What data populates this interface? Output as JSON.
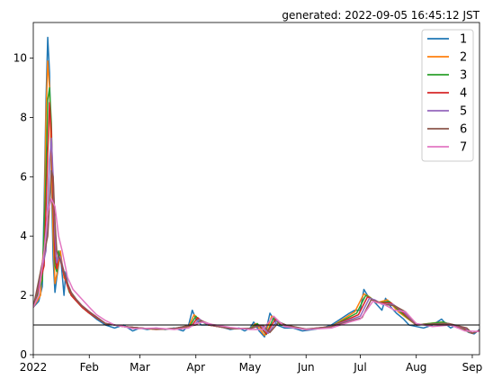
{
  "chart_data": {
    "type": "line",
    "title": "generated: 2022-09-05 16:45:12 JST",
    "xlabel": "",
    "ylabel": "",
    "xlim": [
      "2022-01-01",
      "2022-09-05"
    ],
    "ylim": [
      0,
      11.2
    ],
    "x_ticks": [
      {
        "date": "2022-01-01",
        "label": "2022"
      },
      {
        "date": "2022-02-01",
        "label": "Feb"
      },
      {
        "date": "2022-03-01",
        "label": "Mar"
      },
      {
        "date": "2022-04-01",
        "label": "Apr"
      },
      {
        "date": "2022-05-01",
        "label": "May"
      },
      {
        "date": "2022-06-01",
        "label": "Jun"
      },
      {
        "date": "2022-07-01",
        "label": "Jul"
      },
      {
        "date": "2022-08-01",
        "label": "Aug"
      },
      {
        "date": "2022-09-01",
        "label": "Sep"
      }
    ],
    "y_ticks": [
      0,
      2,
      4,
      6,
      8,
      10
    ],
    "grid": false,
    "legend_position": "top-right",
    "reference_line": {
      "y": 1,
      "color": "#000000"
    },
    "series": [
      {
        "name": "1",
        "color": "#1f77b4",
        "x": [
          "2022-01-01",
          "2022-01-04",
          "2022-01-06",
          "2022-01-07",
          "2022-01-08",
          "2022-01-09",
          "2022-01-10",
          "2022-01-11",
          "2022-01-12",
          "2022-01-13",
          "2022-01-14",
          "2022-01-16",
          "2022-01-18",
          "2022-01-19",
          "2022-01-20",
          "2022-01-22",
          "2022-01-25",
          "2022-01-28",
          "2022-02-01",
          "2022-02-05",
          "2022-02-10",
          "2022-02-15",
          "2022-02-20",
          "2022-02-25",
          "2022-03-01",
          "2022-03-05",
          "2022-03-10",
          "2022-03-15",
          "2022-03-20",
          "2022-03-25",
          "2022-03-28",
          "2022-03-30",
          "2022-04-01",
          "2022-04-04",
          "2022-04-08",
          "2022-04-14",
          "2022-04-20",
          "2022-04-25",
          "2022-04-28",
          "2022-05-01",
          "2022-05-03",
          "2022-05-06",
          "2022-05-09",
          "2022-05-12",
          "2022-05-16",
          "2022-05-20",
          "2022-05-25",
          "2022-05-30",
          "2022-06-05",
          "2022-06-10",
          "2022-06-15",
          "2022-06-20",
          "2022-06-25",
          "2022-06-28",
          "2022-07-01",
          "2022-07-03",
          "2022-07-05",
          "2022-07-07",
          "2022-07-10",
          "2022-07-13",
          "2022-07-15",
          "2022-07-18",
          "2022-07-21",
          "2022-07-25",
          "2022-07-28",
          "2022-08-01",
          "2022-08-05",
          "2022-08-10",
          "2022-08-15",
          "2022-08-18",
          "2022-08-20",
          "2022-08-23",
          "2022-08-26",
          "2022-08-30",
          "2022-09-02",
          "2022-09-05"
        ],
        "values": [
          1.6,
          1.8,
          2.3,
          5.0,
          8.5,
          10.7,
          9.5,
          6.0,
          3.2,
          2.1,
          2.6,
          3.4,
          2.0,
          2.8,
          2.4,
          2.0,
          1.8,
          1.6,
          1.4,
          1.2,
          1.0,
          0.9,
          1.0,
          0.8,
          0.9,
          0.85,
          0.9,
          0.85,
          0.9,
          0.8,
          1.0,
          1.5,
          1.2,
          1.0,
          1.0,
          0.95,
          0.85,
          0.9,
          0.8,
          0.9,
          1.1,
          0.8,
          0.6,
          1.4,
          1.0,
          0.9,
          0.9,
          0.8,
          0.85,
          0.9,
          1.0,
          1.2,
          1.4,
          1.5,
          1.5,
          2.2,
          2.0,
          1.9,
          1.7,
          1.5,
          1.9,
          1.6,
          1.4,
          1.2,
          1.0,
          0.95,
          0.9,
          1.0,
          1.2,
          1.0,
          0.9,
          1.0,
          0.9,
          0.75,
          0.7,
          0.85
        ]
      },
      {
        "name": "2",
        "color": "#ff7f0e",
        "x": [
          "2022-01-01",
          "2022-01-05",
          "2022-01-07",
          "2022-01-08",
          "2022-01-09",
          "2022-01-10",
          "2022-01-11",
          "2022-01-12",
          "2022-01-13",
          "2022-01-14",
          "2022-01-16",
          "2022-01-18",
          "2022-01-20",
          "2022-01-22",
          "2022-01-25",
          "2022-01-28",
          "2022-02-01",
          "2022-02-10",
          "2022-02-20",
          "2022-03-01",
          "2022-03-10",
          "2022-03-20",
          "2022-03-28",
          "2022-03-31",
          "2022-04-02",
          "2022-04-08",
          "2022-04-20",
          "2022-05-01",
          "2022-05-04",
          "2022-05-09",
          "2022-05-13",
          "2022-05-18",
          "2022-06-01",
          "2022-06-15",
          "2022-06-28",
          "2022-07-03",
          "2022-07-06",
          "2022-07-10",
          "2022-07-16",
          "2022-07-22",
          "2022-08-01",
          "2022-08-15",
          "2022-08-25",
          "2022-09-01",
          "2022-09-05"
        ],
        "values": [
          1.6,
          2.0,
          4.0,
          8.0,
          9.9,
          9.0,
          6.5,
          4.0,
          2.4,
          2.7,
          3.5,
          2.6,
          2.4,
          2.0,
          1.8,
          1.6,
          1.4,
          1.05,
          0.95,
          0.9,
          0.85,
          0.88,
          0.95,
          1.35,
          1.2,
          1.0,
          0.88,
          0.88,
          1.05,
          0.65,
          1.3,
          1.0,
          0.85,
          0.95,
          1.45,
          2.05,
          1.95,
          1.75,
          1.85,
          1.45,
          1.0,
          1.1,
          0.9,
          0.72,
          0.82
        ]
      },
      {
        "name": "3",
        "color": "#2ca02c",
        "x": [
          "2022-01-01",
          "2022-01-06",
          "2022-01-08",
          "2022-01-09",
          "2022-01-10",
          "2022-01-11",
          "2022-01-12",
          "2022-01-13",
          "2022-01-14",
          "2022-01-15",
          "2022-01-17",
          "2022-01-19",
          "2022-01-21",
          "2022-01-25",
          "2022-01-28",
          "2022-02-01",
          "2022-02-10",
          "2022-02-20",
          "2022-03-01",
          "2022-03-10",
          "2022-03-20",
          "2022-03-29",
          "2022-04-01",
          "2022-04-03",
          "2022-04-08",
          "2022-04-20",
          "2022-05-01",
          "2022-05-05",
          "2022-05-10",
          "2022-05-14",
          "2022-05-18",
          "2022-06-01",
          "2022-06-15",
          "2022-06-29",
          "2022-07-04",
          "2022-07-07",
          "2022-07-11",
          "2022-07-17",
          "2022-07-23",
          "2022-08-01",
          "2022-08-16",
          "2022-08-26",
          "2022-09-01",
          "2022-09-05"
        ],
        "values": [
          1.6,
          2.5,
          6.0,
          8.6,
          9.0,
          7.8,
          5.0,
          3.0,
          2.8,
          3.5,
          3.0,
          2.5,
          2.1,
          1.8,
          1.6,
          1.4,
          1.05,
          0.95,
          0.9,
          0.86,
          0.88,
          1.0,
          1.3,
          1.15,
          1.0,
          0.88,
          0.88,
          1.05,
          0.68,
          1.25,
          1.0,
          0.85,
          0.95,
          1.4,
          2.0,
          1.9,
          1.75,
          1.8,
          1.45,
          1.0,
          1.1,
          0.9,
          0.72,
          0.82
        ]
      },
      {
        "name": "4",
        "color": "#d62728",
        "x": [
          "2022-01-01",
          "2022-01-07",
          "2022-01-09",
          "2022-01-10",
          "2022-01-11",
          "2022-01-12",
          "2022-01-13",
          "2022-01-14",
          "2022-01-15",
          "2022-01-16",
          "2022-01-18",
          "2022-01-20",
          "2022-01-22",
          "2022-01-25",
          "2022-01-28",
          "2022-02-01",
          "2022-02-10",
          "2022-02-20",
          "2022-03-01",
          "2022-03-10",
          "2022-03-20",
          "2022-03-30",
          "2022-04-02",
          "2022-04-04",
          "2022-04-08",
          "2022-04-20",
          "2022-05-01",
          "2022-05-06",
          "2022-05-10",
          "2022-05-15",
          "2022-05-19",
          "2022-06-01",
          "2022-06-15",
          "2022-06-30",
          "2022-07-05",
          "2022-07-08",
          "2022-07-12",
          "2022-07-18",
          "2022-07-24",
          "2022-08-01",
          "2022-08-17",
          "2022-08-27",
          "2022-09-01",
          "2022-09-05"
        ],
        "values": [
          1.6,
          3.0,
          6.8,
          8.5,
          7.5,
          5.2,
          3.3,
          2.9,
          3.3,
          3.2,
          2.7,
          2.3,
          2.0,
          1.8,
          1.6,
          1.4,
          1.05,
          0.95,
          0.9,
          0.86,
          0.88,
          1.0,
          1.25,
          1.15,
          1.0,
          0.88,
          0.88,
          1.0,
          0.7,
          1.2,
          1.0,
          0.85,
          0.95,
          1.35,
          1.95,
          1.85,
          1.75,
          1.75,
          1.45,
          1.0,
          1.05,
          0.9,
          0.72,
          0.82
        ]
      },
      {
        "name": "5",
        "color": "#9467bd",
        "x": [
          "2022-01-01",
          "2022-01-08",
          "2022-01-10",
          "2022-01-11",
          "2022-01-12",
          "2022-01-13",
          "2022-01-14",
          "2022-01-15",
          "2022-01-16",
          "2022-01-18",
          "2022-01-20",
          "2022-01-22",
          "2022-01-25",
          "2022-01-28",
          "2022-02-01",
          "2022-02-10",
          "2022-02-20",
          "2022-03-01",
          "2022-03-10",
          "2022-03-20",
          "2022-03-31",
          "2022-04-03",
          "2022-04-05",
          "2022-04-09",
          "2022-04-20",
          "2022-05-01",
          "2022-05-07",
          "2022-05-11",
          "2022-05-16",
          "2022-05-20",
          "2022-06-01",
          "2022-06-15",
          "2022-07-01",
          "2022-07-06",
          "2022-07-09",
          "2022-07-13",
          "2022-07-19",
          "2022-07-25",
          "2022-08-01",
          "2022-08-18",
          "2022-08-28",
          "2022-09-01",
          "2022-09-05"
        ],
        "values": [
          1.6,
          3.5,
          6.5,
          7.3,
          6.0,
          4.0,
          3.1,
          3.3,
          3.3,
          2.8,
          2.4,
          2.1,
          1.85,
          1.65,
          1.45,
          1.05,
          0.95,
          0.9,
          0.86,
          0.88,
          1.0,
          1.2,
          1.1,
          1.0,
          0.88,
          0.88,
          1.0,
          0.72,
          1.15,
          1.0,
          0.86,
          0.95,
          1.3,
          1.9,
          1.85,
          1.7,
          1.7,
          1.45,
          1.0,
          1.05,
          0.9,
          0.72,
          0.82
        ]
      },
      {
        "name": "6",
        "color": "#8c564b",
        "x": [
          "2022-01-01",
          "2022-01-09",
          "2022-01-11",
          "2022-01-12",
          "2022-01-13",
          "2022-01-14",
          "2022-01-15",
          "2022-01-16",
          "2022-01-18",
          "2022-01-20",
          "2022-01-22",
          "2022-01-25",
          "2022-01-28",
          "2022-02-01",
          "2022-02-10",
          "2022-02-20",
          "2022-03-01",
          "2022-03-10",
          "2022-03-20",
          "2022-04-01",
          "2022-04-04",
          "2022-04-06",
          "2022-04-10",
          "2022-04-20",
          "2022-05-01",
          "2022-05-08",
          "2022-05-12",
          "2022-05-17",
          "2022-05-21",
          "2022-06-01",
          "2022-06-15",
          "2022-07-02",
          "2022-07-07",
          "2022-07-10",
          "2022-07-14",
          "2022-07-20",
          "2022-07-26",
          "2022-08-01",
          "2022-08-19",
          "2022-08-29",
          "2022-09-01",
          "2022-09-05"
        ],
        "values": [
          1.6,
          4.0,
          6.2,
          6.0,
          4.5,
          3.5,
          3.3,
          3.2,
          2.8,
          2.4,
          2.1,
          1.85,
          1.65,
          1.45,
          1.05,
          0.95,
          0.9,
          0.86,
          0.88,
          1.0,
          1.15,
          1.1,
          1.0,
          0.88,
          0.88,
          1.0,
          0.75,
          1.1,
          1.0,
          0.86,
          0.95,
          1.25,
          1.85,
          1.8,
          1.7,
          1.65,
          1.45,
          1.0,
          1.05,
          0.9,
          0.72,
          0.82
        ]
      },
      {
        "name": "7",
        "color": "#e377c2",
        "x": [
          "2022-01-01",
          "2022-01-04",
          "2022-01-07",
          "2022-01-09",
          "2022-01-11",
          "2022-01-13",
          "2022-01-15",
          "2022-01-17",
          "2022-01-20",
          "2022-01-23",
          "2022-01-26",
          "2022-01-29",
          "2022-02-01",
          "2022-02-05",
          "2022-02-10",
          "2022-02-15",
          "2022-02-20",
          "2022-02-25",
          "2022-03-01",
          "2022-03-10",
          "2022-03-20",
          "2022-03-28",
          "2022-04-01",
          "2022-04-05",
          "2022-04-10",
          "2022-04-20",
          "2022-05-01",
          "2022-05-08",
          "2022-05-14",
          "2022-05-20",
          "2022-06-01",
          "2022-06-15",
          "2022-06-25",
          "2022-07-01",
          "2022-07-08",
          "2022-07-14",
          "2022-07-20",
          "2022-07-26",
          "2022-08-01",
          "2022-08-10",
          "2022-08-20",
          "2022-08-28",
          "2022-09-05"
        ],
        "values": [
          1.6,
          2.0,
          3.5,
          4.8,
          5.25,
          5.0,
          4.0,
          3.5,
          2.6,
          2.2,
          2.0,
          1.8,
          1.6,
          1.35,
          1.15,
          1.0,
          0.95,
          0.88,
          0.88,
          0.9,
          0.85,
          0.9,
          1.05,
          1.1,
          1.02,
          0.92,
          0.85,
          0.85,
          1.3,
          0.95,
          0.85,
          0.9,
          1.1,
          1.2,
          1.8,
          1.7,
          1.5,
          1.45,
          1.05,
          0.95,
          1.0,
          0.8,
          0.78
        ]
      }
    ]
  }
}
